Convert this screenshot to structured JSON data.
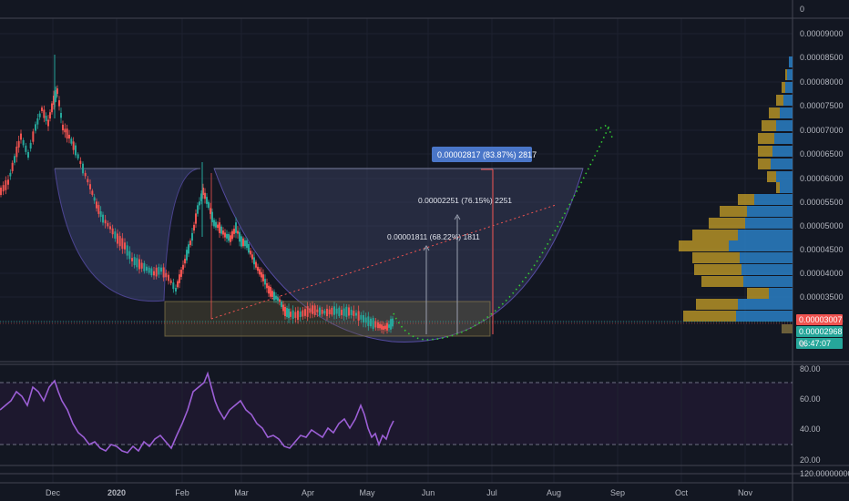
{
  "price_axis": {
    "labels": [
      "0",
      "0.00009000",
      "0.00008500",
      "0.00008000",
      "0.00007500",
      "0.00007000",
      "0.00006500",
      "0.00006000",
      "0.00005500",
      "0.00005000",
      "0.00004500",
      "0.00004000",
      "0.00003500",
      "0.00003000"
    ],
    "tags": [
      {
        "text": "0.00003007",
        "color": "#ef5350"
      },
      {
        "text": "0.00002968",
        "color": "#26a69a"
      },
      {
        "text": "06:47:07",
        "color": "#26a69a"
      }
    ],
    "bottom_label": "0."
  },
  "rsi_axis": {
    "labels": [
      "80.00",
      "60.00",
      "40.00",
      "20.00"
    ],
    "extra": "120.00000000"
  },
  "time_axis": {
    "labels": [
      "Dec",
      "2020",
      "Feb",
      "Mar",
      "Apr",
      "May",
      "Jun",
      "Jul",
      "Aug",
      "Sep",
      "Oct",
      "Nov"
    ]
  },
  "annotations": {
    "measure_1": "0.00001811 (68.22%) 1811",
    "measure_2": "0.00002251 (76.15%) 2251",
    "measure_3": "0.00002817 (83.87%) 2817"
  },
  "chart_data": {
    "type": "candlestick",
    "colors": {
      "up": "#26a69a",
      "down": "#ef5350",
      "rsi": "#9c5fd6",
      "projection": "#33cc33",
      "volume_up": "#2a7fc4",
      "volume_down": "#c9a227"
    },
    "price_range": [
      2.5e-05,
      9.3e-05
    ],
    "x_months": [
      "Dec",
      "2020",
      "Feb",
      "Mar",
      "Apr",
      "May",
      "Jun",
      "Jul",
      "Aug",
      "Sep",
      "Oct",
      "Nov"
    ],
    "key_prices": [
      {
        "date": "2019-11",
        "price": 5.6e-05
      },
      {
        "date": "2019-12",
        "price": 8.1e-05
      },
      {
        "date": "2019-12",
        "price": 7.2e-05
      },
      {
        "date": "2020-01",
        "price": 4.6e-05
      },
      {
        "date": "2020-01",
        "price": 3.7e-05
      },
      {
        "date": "2020-02",
        "price": 4.7e-05
      },
      {
        "date": "2020-02",
        "price": 6.3e-05
      },
      {
        "date": "2020-03",
        "price": 4.8e-05
      },
      {
        "date": "2020-03",
        "price": 3.1e-05
      },
      {
        "date": "2020-04",
        "price": 3.3e-05
      },
      {
        "date": "2020-05",
        "price": 3e-05
      },
      {
        "date": "2020-05",
        "price": 3.007e-05
      }
    ],
    "rsi": {
      "levels": [
        70,
        30
      ],
      "range": [
        20,
        80
      ]
    }
  }
}
